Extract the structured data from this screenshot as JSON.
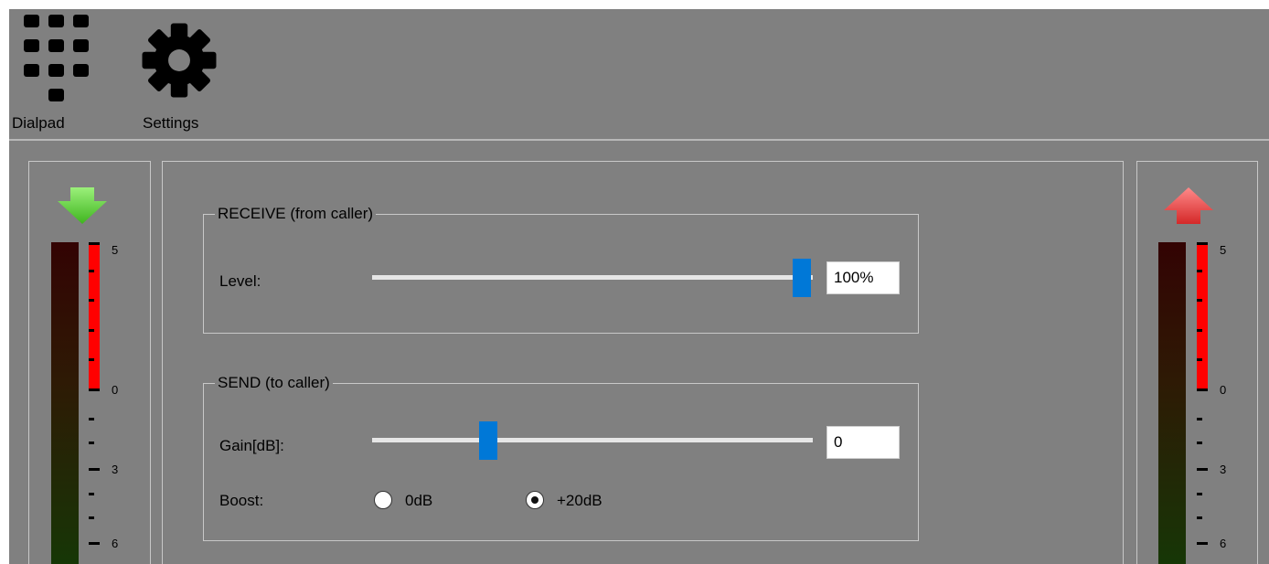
{
  "toolbar": {
    "dialpad_label": "Dialpad",
    "settings_label": "Settings",
    "dialpad_icon": "dialpad-icon",
    "settings_icon": "gear-icon"
  },
  "meters": {
    "left": {
      "direction_icon": "arrow-down-icon",
      "arrow_color": "#5fd63a",
      "scale": [
        "5",
        "0",
        "3",
        "6"
      ]
    },
    "right": {
      "direction_icon": "arrow-up-icon",
      "arrow_color": "#e53a3a",
      "scale": [
        "5",
        "0",
        "3",
        "6"
      ]
    }
  },
  "receive": {
    "title": "RECEIVE (from caller)",
    "level_label": "Level:",
    "level_value": "100%",
    "level_fraction": 1.0
  },
  "send": {
    "title": "SEND (to caller)",
    "gain_label": "Gain[dB]:",
    "gain_value": "0",
    "gain_fraction": 0.25,
    "boost_label": "Boost:",
    "boost_options": [
      "0dB",
      "+20dB"
    ],
    "boost_selected": "+20dB"
  },
  "colors": {
    "slider_thumb": "#0078d7",
    "led_active": "#ff0000"
  }
}
